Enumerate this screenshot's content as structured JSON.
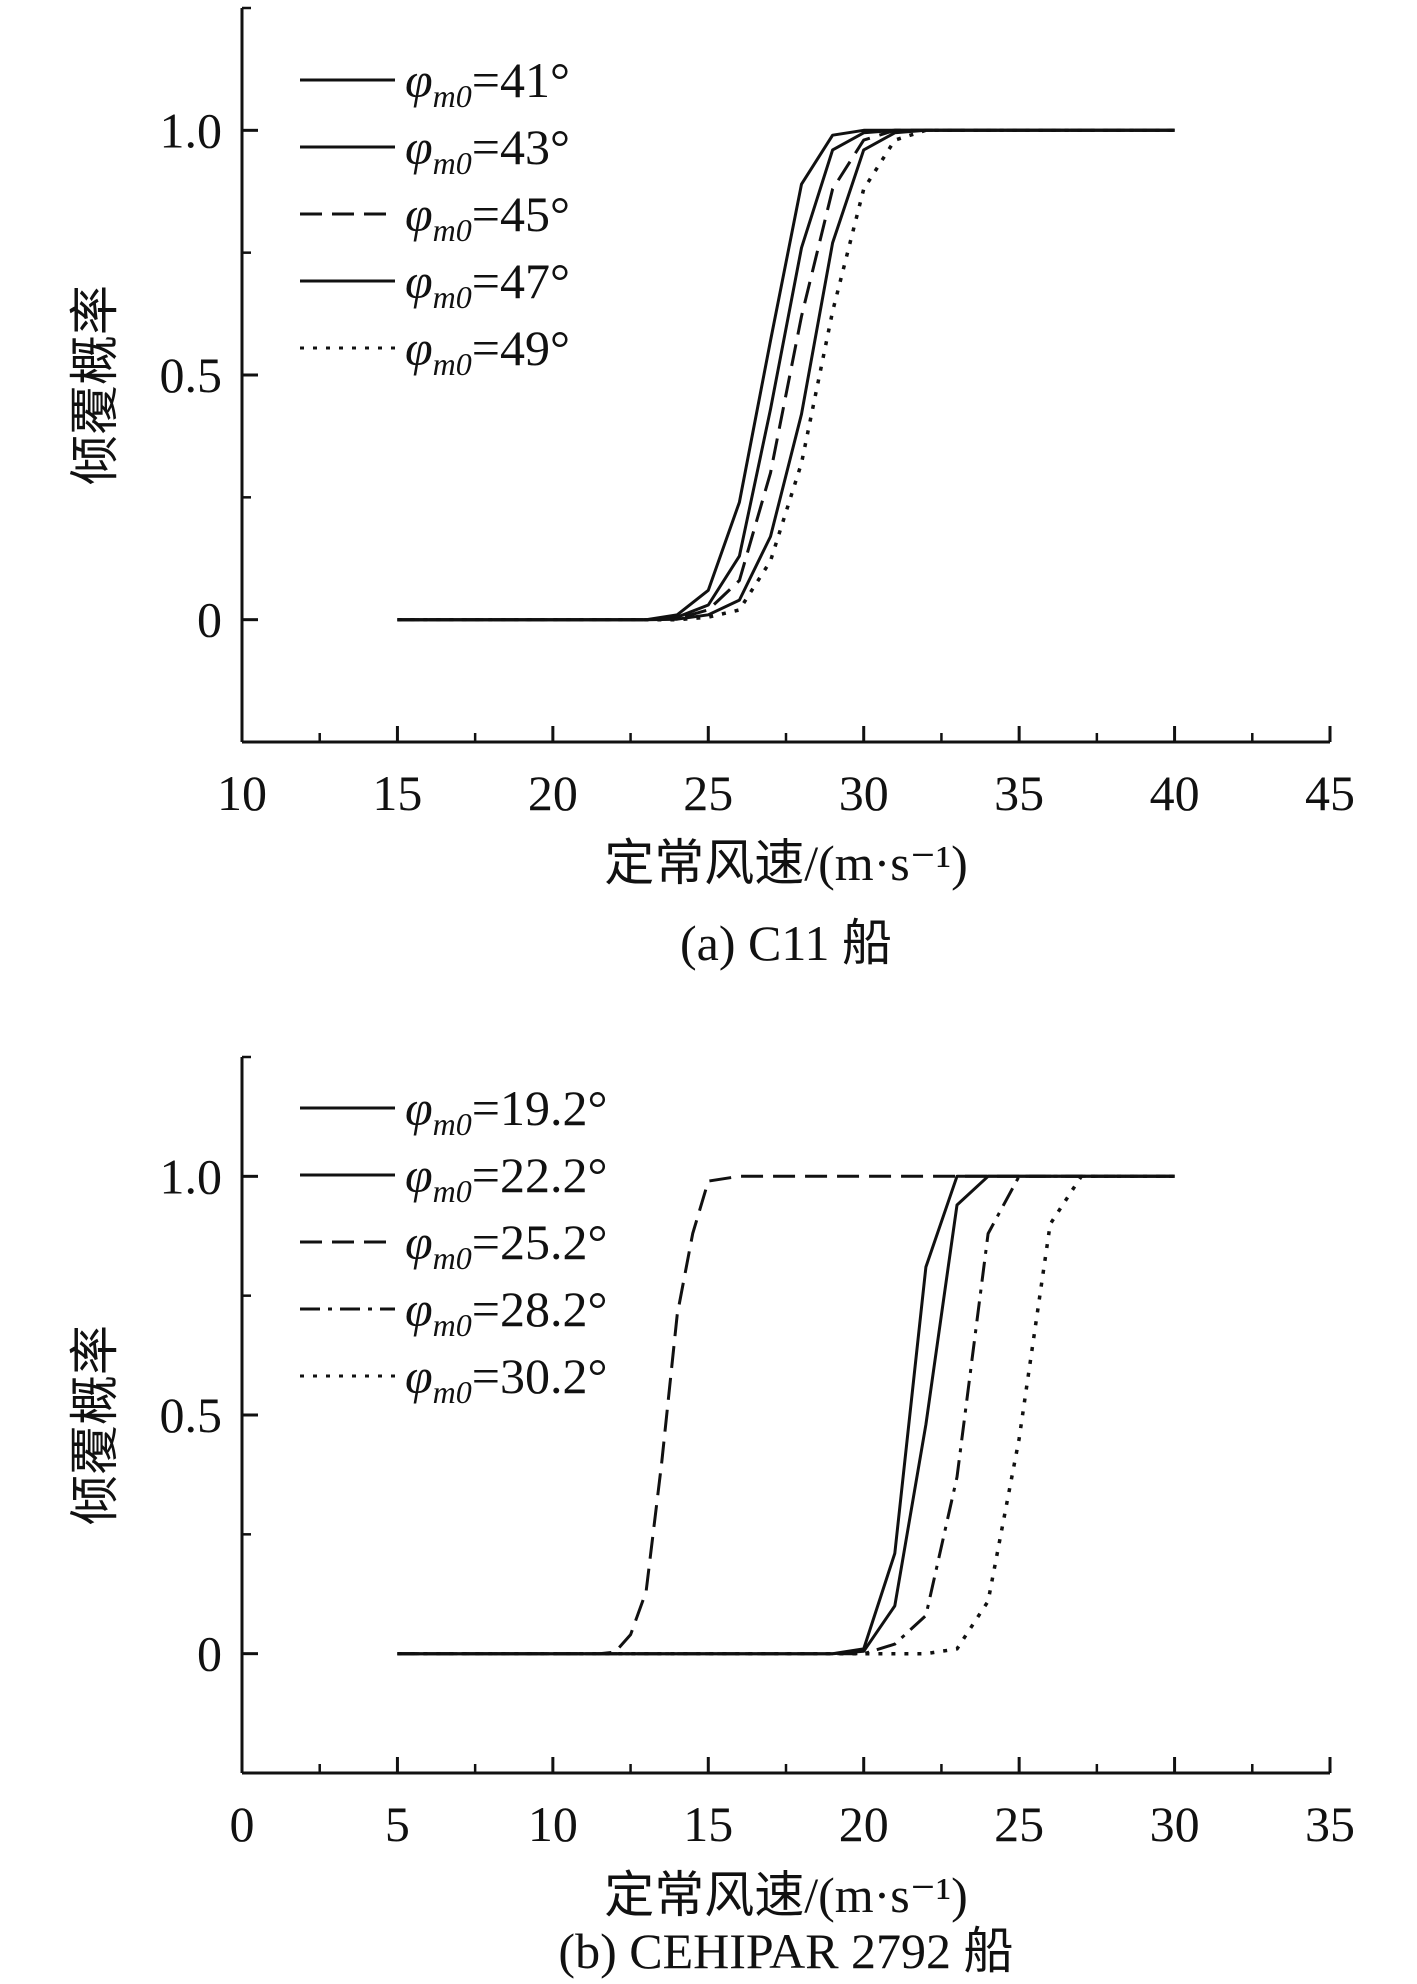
{
  "chart_data": [
    {
      "type": "line",
      "caption": "(a) C11 船",
      "xlabel": "定常风速/(m·s⁻¹)",
      "ylabel": "倾覆概率",
      "xlim": [
        10,
        45
      ],
      "ylim": [
        -0.25,
        1.25
      ],
      "xticks": [
        "10",
        "15",
        "20",
        "25",
        "30",
        "35",
        "40",
        "45"
      ],
      "yticks": [
        {
          "value": 0,
          "label": "0"
        },
        {
          "value": 0.5,
          "label": "0.5"
        },
        {
          "value": 1.0,
          "label": "1.0"
        }
      ],
      "grid": false,
      "legend_position": "top-left",
      "series": [
        {
          "name": "φm0=41°",
          "symbol": "φ",
          "sub": "m0",
          "value": "=41°",
          "dash": "solid",
          "x": [
            15,
            20,
            23,
            24,
            25,
            26,
            27,
            28,
            29,
            30,
            31,
            32,
            35,
            40
          ],
          "y": [
            0,
            0,
            0,
            0.01,
            0.06,
            0.24,
            0.57,
            0.89,
            0.99,
            1.0,
            1.0,
            1.0,
            1.0,
            1.0
          ]
        },
        {
          "name": "φm0=43°",
          "symbol": "φ",
          "sub": "m0",
          "value": "=43°",
          "dash": "solid",
          "x": [
            15,
            20,
            23,
            24,
            25,
            26,
            27,
            28,
            29,
            30,
            31,
            32,
            35,
            40
          ],
          "y": [
            0,
            0,
            0,
            0.005,
            0.03,
            0.13,
            0.43,
            0.76,
            0.96,
            0.995,
            1.0,
            1.0,
            1.0,
            1.0
          ]
        },
        {
          "name": "φm0=45°",
          "symbol": "φ",
          "sub": "m0",
          "value": "=45°",
          "dash": "dashed",
          "x": [
            15,
            20,
            23,
            24,
            25,
            26,
            27,
            28,
            29,
            30,
            31,
            32,
            35,
            40
          ],
          "y": [
            0,
            0,
            0,
            0.002,
            0.02,
            0.08,
            0.3,
            0.62,
            0.88,
            0.98,
            1.0,
            1.0,
            1.0,
            1.0
          ]
        },
        {
          "name": "φm0=47°",
          "symbol": "φ",
          "sub": "m0",
          "value": "=47°",
          "dash": "solid",
          "x": [
            15,
            20,
            23,
            24,
            25,
            26,
            27,
            28,
            29,
            30,
            31,
            32,
            35,
            40
          ],
          "y": [
            0,
            0,
            0,
            0.001,
            0.01,
            0.04,
            0.17,
            0.42,
            0.77,
            0.96,
            0.995,
            1.0,
            1.0,
            1.0
          ]
        },
        {
          "name": "φm0=49°",
          "symbol": "φ",
          "sub": "m0",
          "value": "=49°",
          "dash": "dotted",
          "x": [
            15,
            20,
            23,
            24,
            25,
            26,
            27,
            28,
            29,
            30,
            31,
            32,
            35,
            40
          ],
          "y": [
            0,
            0,
            0,
            0,
            0.005,
            0.02,
            0.12,
            0.32,
            0.63,
            0.88,
            0.98,
            1.0,
            1.0,
            1.0
          ]
        }
      ]
    },
    {
      "type": "line",
      "caption": "(b) CEHIPAR 2792 船",
      "xlabel": "定常风速/(m·s⁻¹)",
      "ylabel": "倾覆概率",
      "xlim": [
        0,
        35
      ],
      "ylim": [
        -0.25,
        1.25
      ],
      "xticks": [
        "0",
        "5",
        "10",
        "15",
        "20",
        "25",
        "30",
        "35"
      ],
      "yticks": [
        {
          "value": 0,
          "label": "0"
        },
        {
          "value": 0.5,
          "label": "0.5"
        },
        {
          "value": 1.0,
          "label": "1.0"
        }
      ],
      "grid": false,
      "legend_position": "top-left",
      "series": [
        {
          "name": "φm0=19.2°",
          "symbol": "φ",
          "sub": "m0",
          "value": "=19.2°",
          "dash": "solid",
          "x": [
            5,
            10,
            15,
            19,
            20,
            21,
            22,
            23,
            24,
            25,
            30
          ],
          "y": [
            0,
            0,
            0,
            0,
            0.01,
            0.21,
            0.81,
            1.0,
            1.0,
            1.0,
            1.0
          ]
        },
        {
          "name": "φm0=22.2°",
          "symbol": "φ",
          "sub": "m0",
          "value": "=22.2°",
          "dash": "solid",
          "x": [
            5,
            10,
            15,
            19,
            20,
            21,
            22,
            23,
            24,
            25,
            30
          ],
          "y": [
            0,
            0,
            0,
            0,
            0.005,
            0.1,
            0.48,
            0.94,
            1.0,
            1.0,
            1.0
          ]
        },
        {
          "name": "φm0=25.2°",
          "symbol": "φ",
          "sub": "m0",
          "value": "=25.2°",
          "dash": "dashed",
          "x": [
            5,
            10,
            11.5,
            12,
            12.5,
            13,
            13.5,
            14,
            14.5,
            15,
            16,
            20,
            25,
            30
          ],
          "y": [
            0,
            0,
            0,
            0.003,
            0.04,
            0.13,
            0.4,
            0.71,
            0.88,
            0.99,
            1.0,
            1.0,
            1.0,
            1.0
          ]
        },
        {
          "name": "φm0=28.2°",
          "symbol": "φ",
          "sub": "m0",
          "value": "=28.2°",
          "dash": "dashdot",
          "x": [
            5,
            10,
            15,
            20,
            21,
            22,
            23,
            24,
            25,
            30
          ],
          "y": [
            0,
            0,
            0,
            0,
            0.02,
            0.08,
            0.37,
            0.88,
            1.0,
            1.0
          ]
        },
        {
          "name": "φm0=30.2°",
          "symbol": "φ",
          "sub": "m0",
          "value": "=30.2°",
          "dash": "dotted",
          "x": [
            5,
            10,
            15,
            20,
            22,
            23,
            24,
            25,
            26,
            27,
            30
          ],
          "y": [
            0,
            0,
            0,
            0,
            0,
            0.01,
            0.11,
            0.45,
            0.9,
            1.0,
            1.0
          ]
        }
      ]
    }
  ]
}
